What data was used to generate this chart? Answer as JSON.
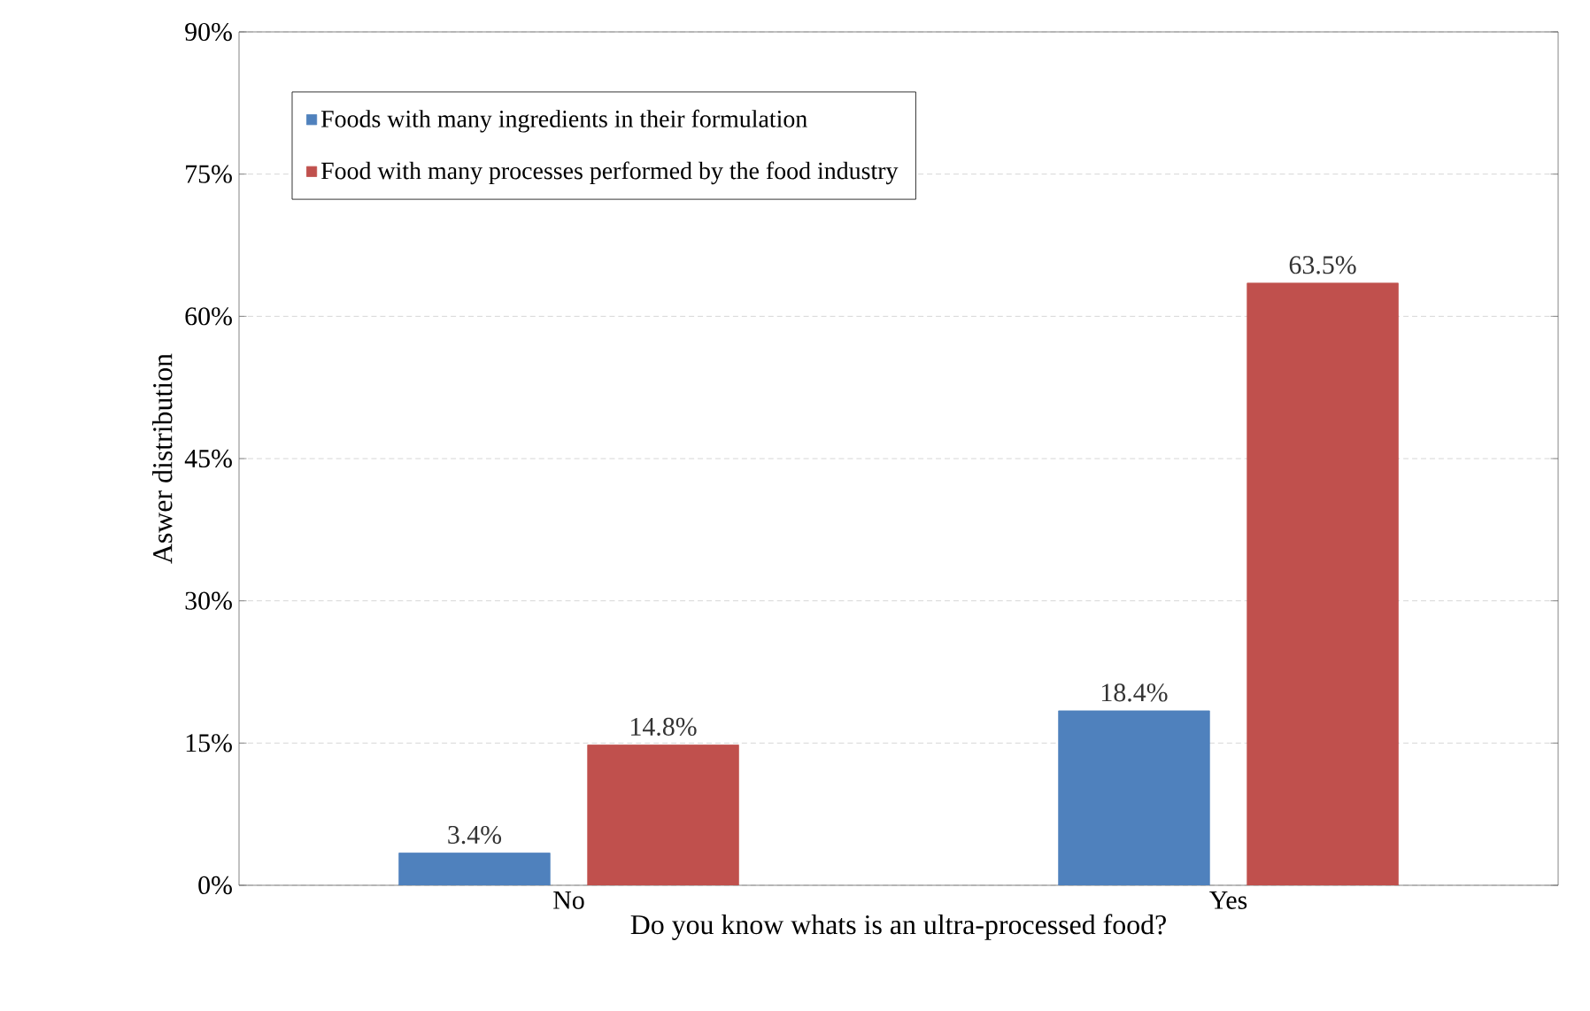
{
  "chart_data": {
    "type": "bar",
    "xlabel": "Do you know whats is an ultra-processed food?",
    "ylabel": "Aswer distribution",
    "categories": [
      "No",
      "Yes"
    ],
    "series": [
      {
        "name": "Foods with many ingredients in their formulation",
        "color": "#4f81bd",
        "values": [
          3.4,
          18.4
        ],
        "value_labels": [
          "3.4%",
          "18.4%"
        ]
      },
      {
        "name": "Food with many processes performed by the food industry",
        "color": "#c0504d",
        "values": [
          14.8,
          63.5
        ],
        "value_labels": [
          "14.8%",
          "63.5%"
        ]
      }
    ],
    "ylim": [
      0,
      90
    ],
    "yticks": [
      {
        "value": 0,
        "label": "0%"
      },
      {
        "value": 15,
        "label": "15%"
      },
      {
        "value": 30,
        "label": "30%"
      },
      {
        "value": 45,
        "label": "45%"
      },
      {
        "value": 60,
        "label": "60%"
      },
      {
        "value": 75,
        "label": "75%"
      },
      {
        "value": 90,
        "label": "90%"
      }
    ],
    "grid": "y",
    "legend": "top left"
  }
}
